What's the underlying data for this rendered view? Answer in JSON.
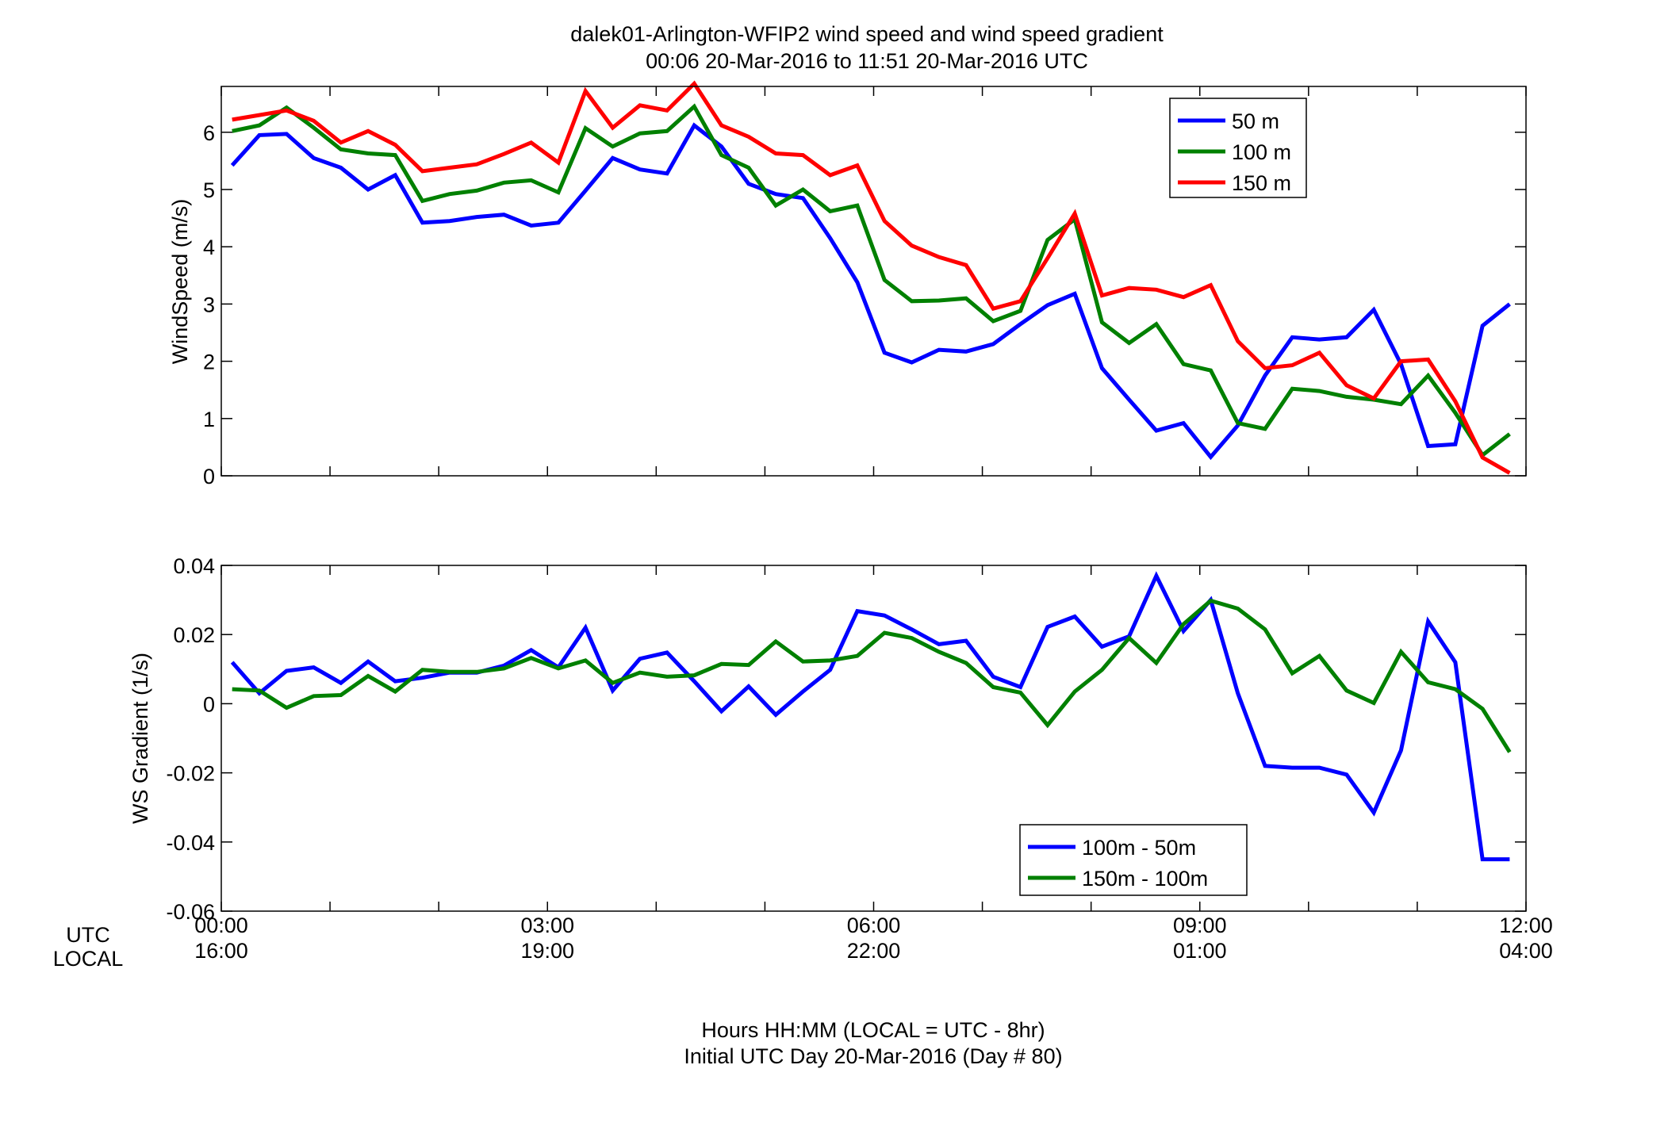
{
  "figure": {
    "title_line1": "dalek01-Arlington-WFIP2  wind speed and wind speed gradient",
    "title_line2": "00:06 20-Mar-2016 to 11:51 20-Mar-2016  UTC",
    "row_label_utc": "UTC",
    "row_label_local": "LOCAL",
    "xlabel_line1": "Hours HH:MM  (LOCAL = UTC - 8hr)",
    "xlabel_line2": "Initial UTC Day 20-Mar-2016 (Day # 80)",
    "x_ticks_utc": [
      "00:00",
      "03:00",
      "06:00",
      "09:00",
      "12:00"
    ],
    "x_ticks_local": [
      "16:00",
      "19:00",
      "22:00",
      "01:00",
      "04:00"
    ]
  },
  "chart_data": [
    {
      "type": "line",
      "ylabel": "WindSpeed (m/s)",
      "xlim": [
        0,
        12
      ],
      "ylim": [
        0,
        6.8
      ],
      "x_unit": "hours UTC",
      "yticks": [
        0,
        1,
        2,
        3,
        4,
        5,
        6
      ],
      "grid": false,
      "legend_position": "top-right",
      "x": [
        0.1,
        0.35,
        0.6,
        0.85,
        1.1,
        1.35,
        1.6,
        1.85,
        2.1,
        2.35,
        2.6,
        2.85,
        3.1,
        3.35,
        3.6,
        3.85,
        4.1,
        4.35,
        4.6,
        4.85,
        5.1,
        5.35,
        5.6,
        5.85,
        6.1,
        6.35,
        6.6,
        6.85,
        7.1,
        7.35,
        7.6,
        7.85,
        8.1,
        8.35,
        8.6,
        8.85,
        9.1,
        9.35,
        9.6,
        9.85,
        10.1,
        10.35,
        10.6,
        10.85,
        11.1,
        11.35,
        11.6,
        11.85
      ],
      "series": [
        {
          "name": "50 m",
          "color": "#0000ff",
          "values": [
            5.42,
            5.95,
            5.97,
            5.55,
            5.38,
            5.0,
            5.25,
            4.42,
            4.45,
            4.52,
            4.56,
            4.37,
            4.42,
            4.98,
            5.55,
            5.35,
            5.28,
            6.12,
            5.75,
            5.1,
            4.92,
            4.85,
            4.15,
            3.38,
            2.15,
            1.98,
            2.2,
            2.17,
            2.3,
            2.65,
            2.98,
            3.18,
            1.88,
            1.33,
            0.79,
            0.92,
            0.33,
            0.88,
            1.75,
            2.42,
            2.38,
            2.42,
            2.9,
            1.95,
            0.52,
            0.55,
            2.62,
            3.0
          ]
        },
        {
          "name": "100 m",
          "color": "#008000",
          "values": [
            6.02,
            6.12,
            6.43,
            6.08,
            5.7,
            5.63,
            5.6,
            4.8,
            4.92,
            4.98,
            5.12,
            5.16,
            4.95,
            6.07,
            5.75,
            5.98,
            6.02,
            6.45,
            5.6,
            5.38,
            4.72,
            5.0,
            4.62,
            4.72,
            3.42,
            3.05,
            3.06,
            3.1,
            2.7,
            2.88,
            4.12,
            4.48,
            2.68,
            2.32,
            2.65,
            1.95,
            1.84,
            0.92,
            0.82,
            1.52,
            1.48,
            1.38,
            1.33,
            1.25,
            1.75,
            1.1,
            0.36,
            0.73
          ]
        },
        {
          "name": "150 m",
          "color": "#ff0000",
          "values": [
            6.22,
            6.3,
            6.38,
            6.2,
            5.82,
            6.02,
            5.78,
            5.32,
            5.38,
            5.44,
            5.62,
            5.82,
            5.47,
            6.72,
            6.08,
            6.47,
            6.38,
            6.85,
            6.12,
            5.92,
            5.63,
            5.6,
            5.25,
            5.42,
            4.45,
            4.02,
            3.82,
            3.68,
            2.92,
            3.05,
            3.8,
            4.58,
            3.15,
            3.28,
            3.25,
            3.12,
            3.33,
            2.35,
            1.88,
            1.93,
            2.15,
            1.58,
            1.35,
            2.0,
            2.03,
            1.3,
            0.32,
            0.05
          ]
        }
      ]
    },
    {
      "type": "line",
      "ylabel": "WS Gradient (1/s)",
      "xlim": [
        0,
        12
      ],
      "ylim": [
        -0.06,
        0.04
      ],
      "x_unit": "hours UTC",
      "yticks": [
        -0.06,
        -0.04,
        -0.02,
        0,
        0.02,
        0.04
      ],
      "ytick_labels": [
        "-0.06",
        "-0.04",
        "-0.02",
        "0",
        "0.02",
        "0.04"
      ],
      "grid": false,
      "legend_position": "bottom-right",
      "x": [
        0.1,
        0.35,
        0.6,
        0.85,
        1.1,
        1.35,
        1.6,
        1.85,
        2.1,
        2.35,
        2.6,
        2.85,
        3.1,
        3.35,
        3.6,
        3.85,
        4.1,
        4.35,
        4.6,
        4.85,
        5.1,
        5.35,
        5.6,
        5.85,
        6.1,
        6.35,
        6.6,
        6.85,
        7.1,
        7.35,
        7.6,
        7.85,
        8.1,
        8.35,
        8.6,
        8.85,
        9.1,
        9.35,
        9.6,
        9.85,
        10.1,
        10.35,
        10.6,
        10.85,
        11.1,
        11.35,
        11.6,
        11.85
      ],
      "series": [
        {
          "name": "100m - 50m",
          "color": "#0000ff",
          "values": [
            0.012,
            0.003,
            0.0095,
            0.0105,
            0.006,
            0.0122,
            0.0065,
            0.0075,
            0.009,
            0.009,
            0.011,
            0.0155,
            0.0105,
            0.022,
            0.0038,
            0.013,
            0.0148,
            0.0065,
            -0.0022,
            0.005,
            -0.0032,
            0.0035,
            0.0098,
            0.0268,
            0.0255,
            0.0215,
            0.0172,
            0.0182,
            0.0078,
            0.0048,
            0.0222,
            0.0252,
            0.0165,
            0.0195,
            0.037,
            0.021,
            0.03,
            0.003,
            -0.018,
            -0.0185,
            -0.0185,
            -0.0205,
            -0.0315,
            -0.0135,
            0.0238,
            0.012,
            -0.045,
            -0.045
          ]
        },
        {
          "name": "150m - 100m",
          "color": "#008000",
          "values": [
            0.0042,
            0.0038,
            -0.0012,
            0.0022,
            0.0025,
            0.008,
            0.0035,
            0.0098,
            0.0092,
            0.0092,
            0.0102,
            0.0132,
            0.0102,
            0.0125,
            0.006,
            0.009,
            0.0078,
            0.0082,
            0.0115,
            0.0112,
            0.018,
            0.0122,
            0.0125,
            0.0138,
            0.0205,
            0.019,
            0.015,
            0.0118,
            0.0048,
            0.0032,
            -0.0062,
            0.0035,
            0.0098,
            0.019,
            0.0118,
            0.023,
            0.0298,
            0.0275,
            0.0215,
            0.0088,
            0.0138,
            0.0038,
            0.0002,
            0.015,
            0.0062,
            0.0042,
            -0.0015,
            -0.014
          ]
        }
      ]
    }
  ]
}
